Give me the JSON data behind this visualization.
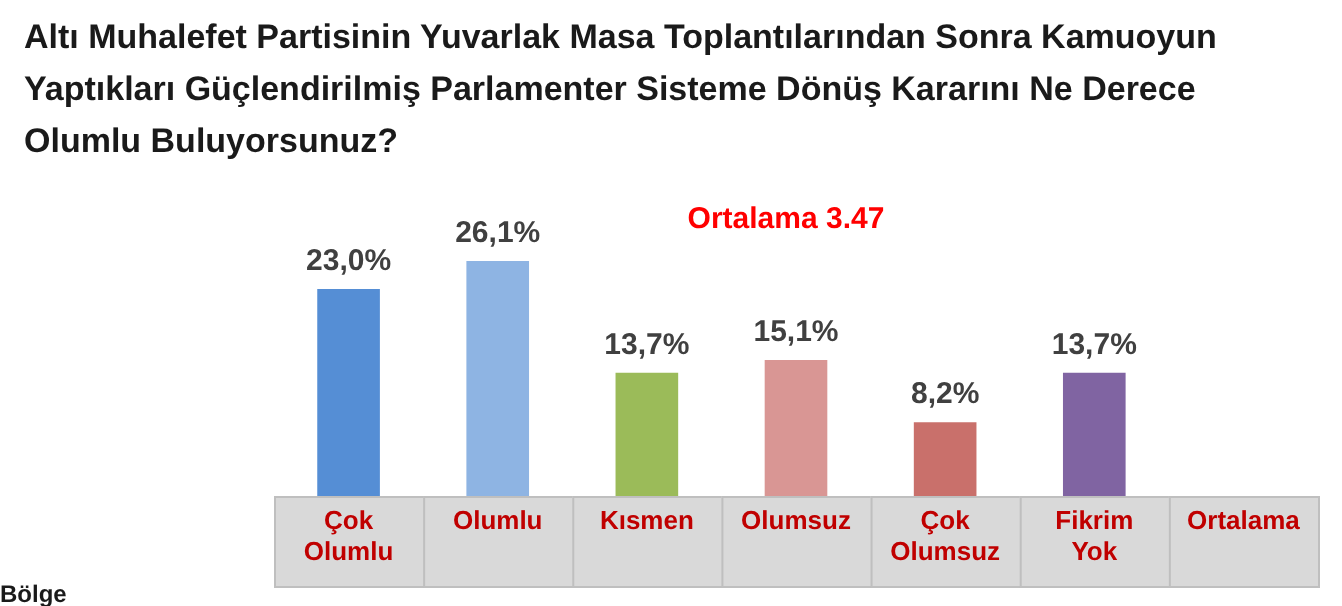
{
  "chart_data": {
    "type": "bar",
    "title": "Altı Muhalefet Partisinin Yuvarlak Masa Toplantılarından Sonra Kamuoyun Yaptıkları Güçlendirilmiş Parlamenter Sisteme Dönüş Kararını Ne Derece Olumlu Buluyorsunuz?",
    "categories": [
      "Çok Olumlu",
      "Olumlu",
      "Kısmen",
      "Olumsuz",
      "Çok Olumsuz",
      "Fikrim Yok",
      "Ortalama"
    ],
    "values": [
      23.0,
      26.1,
      13.7,
      15.1,
      8.2,
      13.7,
      null
    ],
    "value_labels": [
      "23,0%",
      "26,1%",
      "13,7%",
      "15,1%",
      "8,2%",
      "13,7%",
      null
    ],
    "colors": [
      "#558ed5",
      "#8eb4e3",
      "#9bbb59",
      "#d99694",
      "#c9706b",
      "#8064a2",
      "#7f7f7f"
    ],
    "annotations": [
      "Ortalama 3.47",
      "Bölge"
    ],
    "grid": false,
    "legend": false
  }
}
